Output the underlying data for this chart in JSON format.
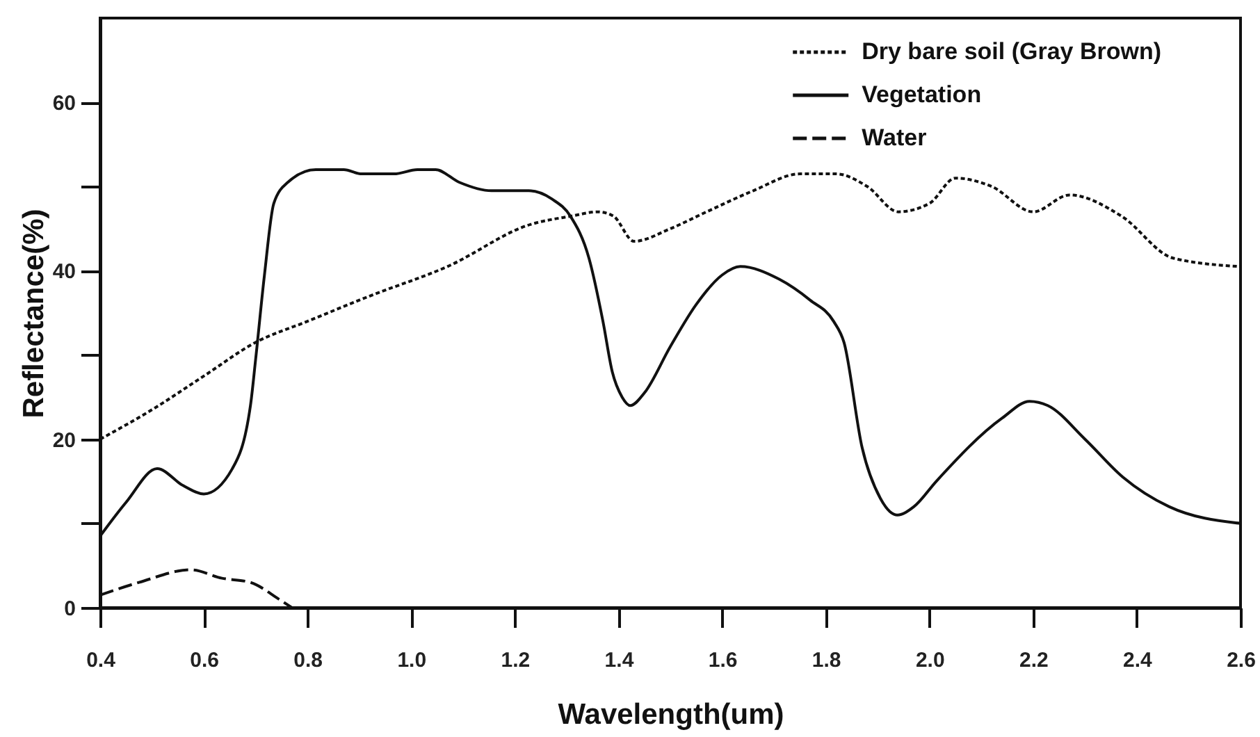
{
  "chart_data": {
    "type": "line",
    "xlabel": "Wavelength(um)",
    "ylabel": "Reflectance(%)",
    "xlim": [
      0.4,
      2.6
    ],
    "xticks": [
      0.4,
      0.6,
      0.8,
      {
        "value": 1,
        "label": "1.0"
      },
      1.2,
      1.4,
      1.6,
      1.8,
      {
        "value": 2,
        "label": "2.0"
      },
      2.2,
      2.4,
      2.6
    ],
    "ylim": [
      0,
      70
    ],
    "yticks": [
      0,
      {
        "value": 10,
        "label": null
      },
      20,
      {
        "value": 30,
        "label": null
      },
      40,
      {
        "value": 50,
        "label": null
      },
      60
    ],
    "legend": "top right",
    "series": [
      {
        "name": "Dry bare soil (Gray Brown)",
        "color": "#111111",
        "line_style": "dotted",
        "x": [
          0.4,
          0.5,
          0.6,
          0.7,
          0.8,
          0.92,
          1.07,
          1.23,
          1.31,
          1.36,
          1.39,
          1.43,
          1.5,
          1.57,
          1.66,
          1.75,
          1.82,
          1.88,
          1.94,
          2.0,
          2.05,
          2.12,
          2.2,
          2.27,
          2.37,
          2.47,
          2.6
        ],
        "values": [
          20,
          23.5,
          27.5,
          31.5,
          34,
          37,
          40.5,
          45.5,
          46.5,
          47,
          46.5,
          43.5,
          45,
          47,
          49.5,
          51.5,
          51.5,
          50,
          47,
          48,
          51,
          50,
          47,
          49,
          46.5,
          41.5,
          40.5
        ]
      },
      {
        "name": "Vegetation",
        "color": "#111111",
        "line_style": "solid",
        "x": [
          0.4,
          0.45,
          0.51,
          0.56,
          0.6,
          0.655,
          0.69,
          0.7,
          0.717,
          0.735,
          0.762,
          0.816,
          0.87,
          0.905,
          0.967,
          1.012,
          1.047,
          1.093,
          1.155,
          1.227,
          1.272,
          1.307,
          1.343,
          1.37,
          1.388,
          1.407,
          1.423,
          1.45,
          1.5,
          1.55,
          1.6,
          1.635,
          1.71,
          1.77,
          1.815,
          1.835,
          1.87,
          1.905,
          1.938,
          1.97,
          2.013,
          2.14,
          2.193,
          2.228,
          2.3,
          2.373,
          2.462,
          2.6
        ],
        "values": [
          8.5,
          12.5,
          16.5,
          14.5,
          13.5,
          16.5,
          24,
          29.5,
          39.5,
          48,
          50.5,
          52,
          52,
          51.5,
          51.5,
          52,
          52,
          50.5,
          49.5,
          49.5,
          48.5,
          46.5,
          41.5,
          34,
          28,
          25,
          24,
          25.5,
          31,
          36,
          39.5,
          40.5,
          39,
          36.5,
          34,
          31.5,
          19,
          13,
          11,
          12,
          15,
          22.5,
          24.5,
          24,
          20,
          15.5,
          12,
          10
        ]
      },
      {
        "name": "Water",
        "color": "#111111",
        "line_style": "dashed",
        "x": [
          0.4,
          0.475,
          0.575,
          0.635,
          0.69,
          0.745,
          0.77
        ],
        "values": [
          1.5,
          3,
          4.5,
          3.5,
          3,
          1,
          0
        ]
      }
    ]
  }
}
